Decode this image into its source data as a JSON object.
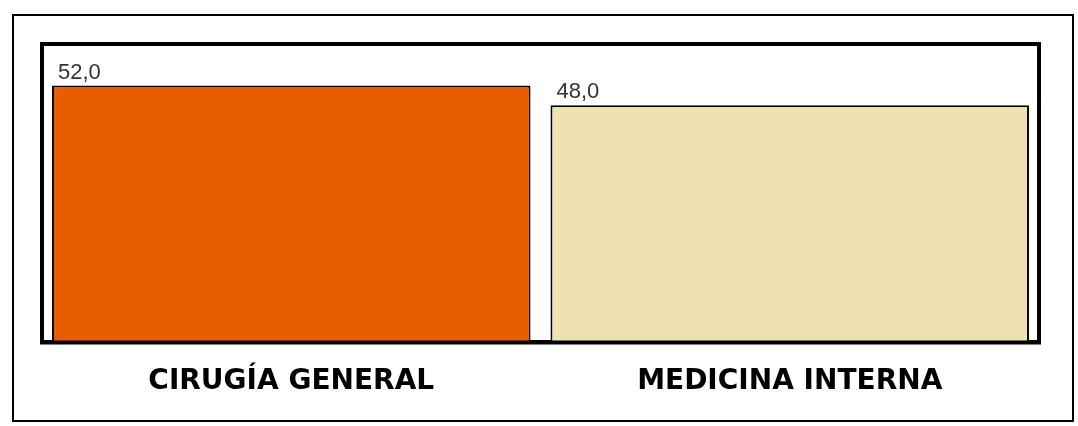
{
  "chart_data": {
    "type": "bar",
    "categories": [
      "CIRUGÍA GENERAL",
      "MEDICINA INTERNA"
    ],
    "values": [
      52,
      48
    ],
    "colors": [
      "#e85d00",
      "#efe2b0"
    ],
    "value_labels": [
      "52,0",
      "48,0"
    ],
    "grid": false,
    "legend": false,
    "tick_labels": "x"
  }
}
